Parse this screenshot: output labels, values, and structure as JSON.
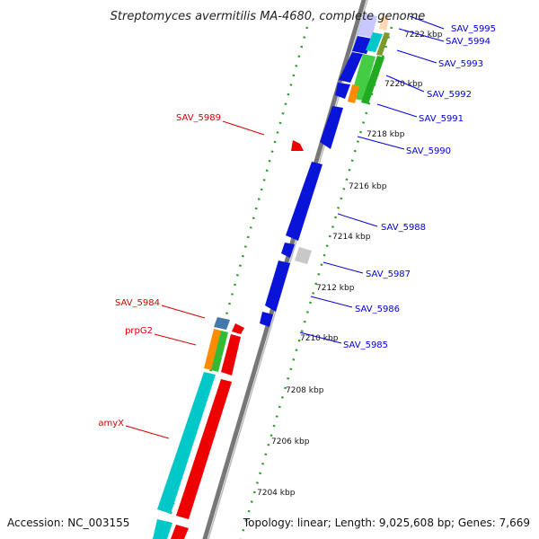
{
  "title": "Streptomyces avermitilis MA-4680, complete genome",
  "footer": {
    "accession": "Accession: NC_003155",
    "summary": "Topology: linear; Length: 9,025,608 bp; Genes: 7,669"
  },
  "colors": {
    "forward_label": "#0000dd",
    "reverse_label": "#dd0000",
    "backbone": "#888888",
    "tick_dots": "#228b22"
  },
  "ticks": [
    "7204 kbp",
    "7206 kbp",
    "7208 kbp",
    "7210 kbp",
    "7212 kbp",
    "7214 kbp",
    "7216 kbp",
    "7218 kbp",
    "7220 kbp",
    "7222 kbp"
  ],
  "forward_labels": [
    "SAV_5995",
    "SAV_5994",
    "SAV_5993",
    "SAV_5992",
    "SAV_5991",
    "SAV_5990",
    "SAV_5988",
    "SAV_5987",
    "SAV_5986",
    "SAV_5985"
  ],
  "reverse_labels": [
    "SAV_5989",
    "SAV_5984",
    "prpG2",
    "amyX"
  ]
}
